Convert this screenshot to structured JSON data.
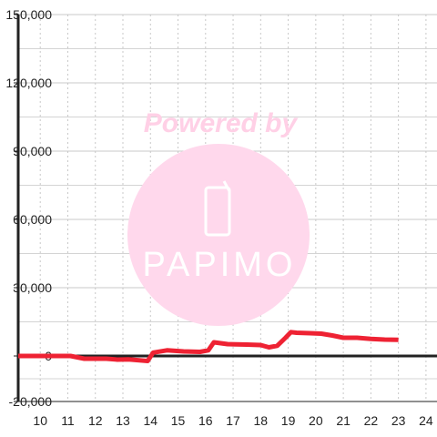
{
  "chart_data": {
    "type": "line",
    "title": "",
    "xlabel": "",
    "ylabel": "",
    "xlim": [
      9.2,
      24.4
    ],
    "ylim": [
      -20000,
      150000
    ],
    "x_ticks": [
      10,
      11,
      12,
      13,
      14,
      15,
      16,
      17,
      18,
      19,
      20,
      21,
      22,
      23,
      24
    ],
    "y_ticks": [
      -20000,
      0,
      30000,
      60000,
      90000,
      120000,
      150000
    ],
    "y_tick_labels": [
      "-20,000",
      "0",
      "30,000",
      "60,000",
      "90,000",
      "120,000",
      "150,000"
    ],
    "grid": true,
    "legend": "none",
    "series": [
      {
        "color": "#ee2233",
        "points": [
          [
            9.2,
            0
          ],
          [
            11.1,
            0
          ],
          [
            11.6,
            -1200
          ],
          [
            12.4,
            -1200
          ],
          [
            12.8,
            -1600
          ],
          [
            13.2,
            -1500
          ],
          [
            13.9,
            -2200
          ],
          [
            14.1,
            1500
          ],
          [
            14.6,
            2500
          ],
          [
            15.2,
            2000
          ],
          [
            15.8,
            1800
          ],
          [
            16.1,
            2500
          ],
          [
            16.3,
            6000
          ],
          [
            16.8,
            5200
          ],
          [
            17.5,
            5000
          ],
          [
            18.0,
            4800
          ],
          [
            18.3,
            3800
          ],
          [
            18.6,
            4500
          ],
          [
            18.9,
            8000
          ],
          [
            19.1,
            10500
          ],
          [
            19.3,
            10200
          ],
          [
            19.8,
            10000
          ],
          [
            20.2,
            9800
          ],
          [
            20.6,
            9000
          ],
          [
            21.0,
            8000
          ],
          [
            21.5,
            8000
          ],
          [
            22.0,
            7500
          ],
          [
            22.5,
            7200
          ],
          [
            23.0,
            7100
          ]
        ]
      }
    ]
  },
  "watermark": {
    "powered_by": "Powered by",
    "brand": "PAPIMO",
    "circle_color": "#ffd8ec",
    "text_color": "#ffd0e6"
  }
}
